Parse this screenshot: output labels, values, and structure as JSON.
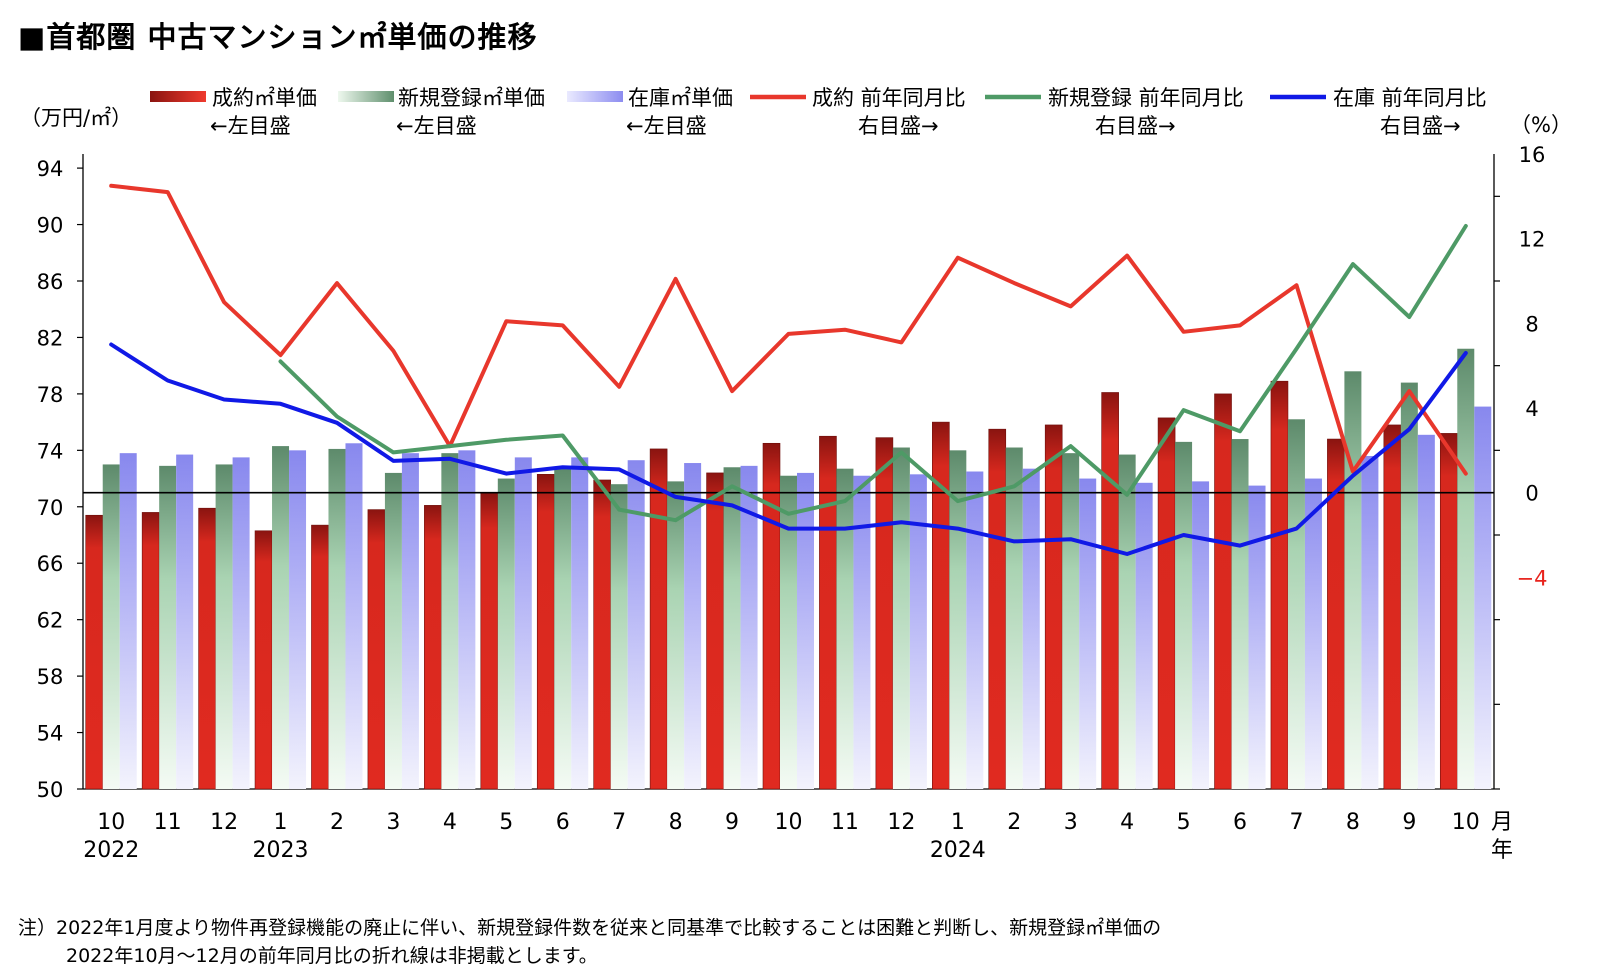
{
  "title": "■首都圏 中古マンション㎡単価の推移",
  "chart_data": {
    "type": "bar",
    "categories": [
      "10",
      "11",
      "12",
      "1",
      "2",
      "3",
      "4",
      "5",
      "6",
      "7",
      "8",
      "9",
      "10",
      "11",
      "12",
      "1",
      "2",
      "3",
      "4",
      "5",
      "6",
      "7",
      "8",
      "9",
      "10"
    ],
    "year_labels": [
      {
        "index": 0,
        "label": "2022"
      },
      {
        "index": 3,
        "label": "2023"
      },
      {
        "index": 15,
        "label": "2024"
      }
    ],
    "x_unit_month": "月",
    "x_unit_year": "年",
    "left_axis": {
      "label": "（万円/㎡）",
      "ylim": [
        50,
        95
      ],
      "ticks": [
        50,
        54,
        58,
        62,
        66,
        70,
        74,
        78,
        82,
        86,
        90,
        94
      ]
    },
    "right_axis": {
      "label": "（%）",
      "ylim": [
        -14,
        16
      ],
      "ticks": [
        16,
        12,
        8,
        4,
        0,
        -4
      ],
      "negative_tick_color": "#e8231d"
    },
    "series": [
      {
        "name": "成約㎡単価",
        "sub": "←左目盛",
        "kind": "bar",
        "axis": "left",
        "color": "#c8231b",
        "values": [
          69.4,
          69.6,
          69.9,
          68.3,
          68.7,
          69.8,
          70.1,
          71.0,
          72.3,
          71.9,
          74.1,
          72.4,
          74.5,
          75.0,
          74.9,
          76.0,
          75.5,
          75.8,
          78.1,
          76.3,
          78.0,
          78.9,
          74.8,
          75.8,
          75.2
        ]
      },
      {
        "name": "新規登録㎡単価",
        "sub": "←左目盛",
        "kind": "bar",
        "axis": "left",
        "color": "#8fb89a",
        "values": [
          73.0,
          72.9,
          73.0,
          74.3,
          74.1,
          72.4,
          73.8,
          72.0,
          72.7,
          71.6,
          71.8,
          72.8,
          72.2,
          72.7,
          74.2,
          74.0,
          74.2,
          73.8,
          73.7,
          74.6,
          74.8,
          76.2,
          79.6,
          78.8,
          81.2
        ]
      },
      {
        "name": "在庫㎡単価",
        "sub": "←左目盛",
        "kind": "bar",
        "axis": "left",
        "color": "#9c9cf2",
        "values": [
          73.8,
          73.7,
          73.5,
          74.0,
          74.5,
          73.8,
          74.0,
          73.5,
          73.5,
          73.3,
          73.1,
          72.9,
          72.4,
          72.2,
          72.3,
          72.5,
          72.7,
          72.0,
          71.7,
          71.8,
          71.5,
          72.0,
          73.6,
          75.1,
          77.1
        ]
      },
      {
        "name": "成約 前年同月比",
        "sub": "右目盛→",
        "kind": "line",
        "axis": "right",
        "color": "#e8372c",
        "values": [
          14.5,
          14.2,
          9.0,
          6.5,
          9.9,
          6.7,
          2.2,
          8.1,
          7.9,
          5.0,
          10.1,
          4.8,
          7.5,
          7.7,
          7.1,
          11.1,
          9.9,
          8.8,
          11.2,
          7.6,
          7.9,
          9.8,
          1.0,
          4.8,
          0.9
        ]
      },
      {
        "name": "新規登録 前年同月比",
        "sub": "右目盛→",
        "kind": "line",
        "axis": "right",
        "color": "#4e9a66",
        "values": [
          null,
          null,
          null,
          6.2,
          3.6,
          1.9,
          2.2,
          2.5,
          2.7,
          -0.8,
          -1.3,
          0.3,
          -1.0,
          -0.4,
          1.9,
          -0.4,
          0.3,
          2.2,
          -0.1,
          3.9,
          2.9,
          6.8,
          10.8,
          8.3,
          12.6
        ]
      },
      {
        "name": "在庫 前年同月比",
        "sub": "右目盛→",
        "kind": "line",
        "axis": "right",
        "color": "#1019e6",
        "values": [
          7.0,
          5.3,
          4.4,
          4.2,
          3.3,
          1.5,
          1.6,
          0.9,
          1.2,
          1.1,
          -0.2,
          -0.6,
          -1.7,
          -1.7,
          -1.4,
          -1.7,
          -2.3,
          -2.2,
          -2.9,
          -2.0,
          -2.5,
          -1.7,
          0.8,
          3.0,
          6.6
        ]
      }
    ],
    "grid": false
  },
  "note": {
    "line1": "注）2022年1月度より物件再登録機能の廃止に伴い、新規登録件数を従来と同基準で比較することは困難と判断し、新規登録㎡単価の",
    "line2": "2022年10月～12月の前年同月比の折れ線は非掲載とします。"
  }
}
